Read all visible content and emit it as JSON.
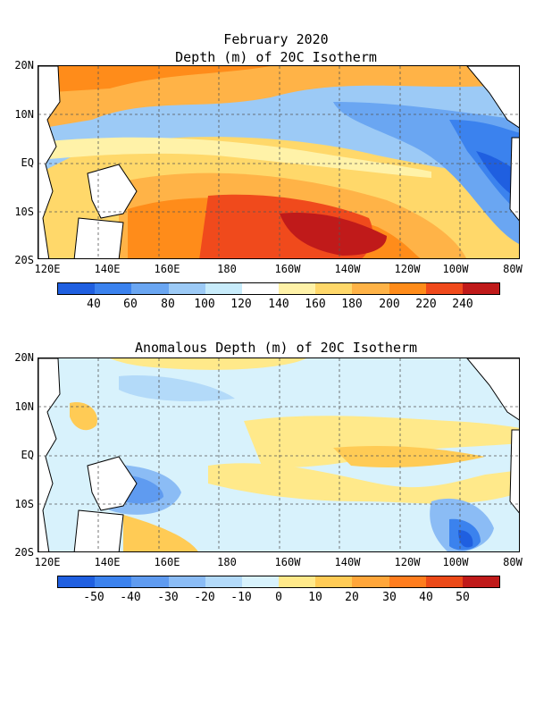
{
  "top": {
    "title_line1": "February 2020",
    "title_line2": "Depth (m) of 20C Isotherm",
    "lat_labels": [
      "20N",
      "10N",
      "EQ",
      "10S",
      "20S"
    ],
    "lon_labels": [
      "120E",
      "140E",
      "160E",
      "180",
      "160W",
      "140W",
      "120W",
      "100W",
      "80W"
    ],
    "colorbar_colors": [
      "#1f5fe0",
      "#3b82ee",
      "#6aa6f2",
      "#9ccaf6",
      "#c8ecfb",
      "#ffffff",
      "#fff2a8",
      "#ffd86a",
      "#ffb347",
      "#ff8c1a",
      "#f04a1c",
      "#c01a1a"
    ],
    "colorbar_labels": [
      "40",
      "60",
      "80",
      "100",
      "120",
      "140",
      "160",
      "180",
      "200",
      "220",
      "240"
    ]
  },
  "bottom": {
    "title": "Anomalous Depth (m) of 20C Isotherm",
    "lat_labels": [
      "20N",
      "10N",
      "EQ",
      "10S",
      "20S"
    ],
    "lon_labels": [
      "120E",
      "140E",
      "160E",
      "180",
      "160W",
      "140W",
      "120W",
      "100W",
      "80W"
    ],
    "colorbar_colors": [
      "#1f5fe0",
      "#3b82ee",
      "#5f9bf0",
      "#8bbcf5",
      "#b3daf9",
      "#d8f2fc",
      "#ffe98a",
      "#ffcb55",
      "#ffa63a",
      "#ff7d1e",
      "#ec4a18",
      "#c01a1a"
    ],
    "colorbar_labels": [
      "-50",
      "-40",
      "-30",
      "-20",
      "-10",
      "0",
      "10",
      "20",
      "30",
      "40",
      "50"
    ]
  },
  "colors": {
    "land": "#ffffff",
    "coast": "#000000",
    "grid": "#555555"
  }
}
